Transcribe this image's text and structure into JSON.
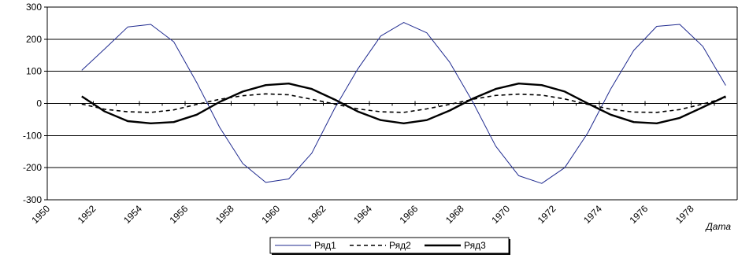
{
  "chart_data": {
    "type": "line",
    "title": "",
    "xlabel": "Дата",
    "ylabel": "",
    "ylim": [
      -300,
      300
    ],
    "yticks": [
      300,
      200,
      100,
      0,
      -100,
      -200,
      -300
    ],
    "xlim": [
      1950,
      1980
    ],
    "xticks": [
      1950,
      1952,
      1954,
      1956,
      1958,
      1960,
      1962,
      1964,
      1966,
      1968,
      1970,
      1972,
      1974,
      1976,
      1978
    ],
    "grid": "horizontal",
    "legend_position": "bottom",
    "x": [
      1951.5,
      1952.5,
      1953.5,
      1954.5,
      1955.5,
      1956.5,
      1957.5,
      1958.5,
      1959.5,
      1960.5,
      1961.5,
      1962.5,
      1963.5,
      1964.5,
      1965.5,
      1966.5,
      1967.5,
      1968.5,
      1969.5,
      1970.5,
      1971.5,
      1972.5,
      1973.5,
      1974.5,
      1975.5,
      1976.5,
      1977.5,
      1978.5,
      1979.5
    ],
    "series": [
      {
        "name": "Ряд1",
        "color": "#1f2a8f",
        "dash": "solid",
        "width": 1,
        "values": [
          103,
          170,
          238,
          246,
          192,
          65,
          -75,
          -187,
          -246,
          -235,
          -155,
          -15,
          107,
          210,
          252,
          220,
          128,
          5,
          -133,
          -225,
          -249,
          -200,
          -92,
          45,
          165,
          240,
          246,
          178,
          56
        ]
      },
      {
        "name": "Ряд2",
        "color": "#000000",
        "dash": "dashed",
        "width": 1.6,
        "values": [
          -2,
          -18,
          -26,
          -28,
          -20,
          -3,
          13,
          24,
          30,
          27,
          13,
          -2,
          -17,
          -26,
          -28,
          -17,
          -3,
          13,
          25,
          29,
          26,
          14,
          -3,
          -18,
          -27,
          -28,
          -19,
          -2,
          18
        ]
      },
      {
        "name": "Ряд3",
        "color": "#000000",
        "dash": "solid",
        "width": 2.4,
        "values": [
          22,
          -25,
          -55,
          -62,
          -58,
          -35,
          5,
          37,
          57,
          62,
          45,
          12,
          -25,
          -52,
          -62,
          -52,
          -22,
          15,
          45,
          62,
          57,
          37,
          0,
          -35,
          -58,
          -62,
          -45,
          -12,
          22
        ]
      }
    ]
  }
}
